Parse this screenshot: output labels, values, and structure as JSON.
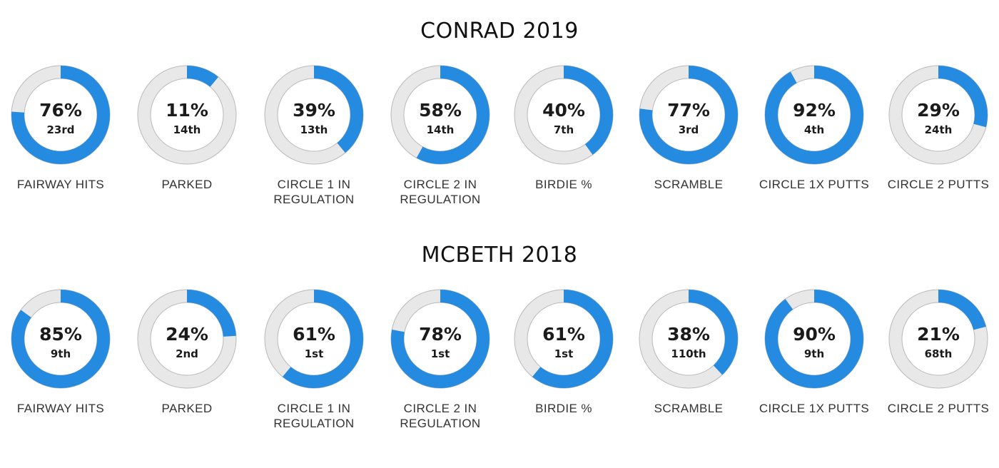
{
  "colors": {
    "filled": "#258be0",
    "track": "#e8e8e8",
    "outline": "#b9b9b9"
  },
  "chart_data": [
    {
      "type": "donut",
      "title": "CONRAD 2019",
      "items": [
        {
          "label": "FAIRWAY HITS",
          "value": 76,
          "pct_text": "76%",
          "rank": "23rd"
        },
        {
          "label": "PARKED",
          "value": 11,
          "pct_text": "11%",
          "rank": "14th"
        },
        {
          "label": "CIRCLE 1 IN REGULATION",
          "value": 39,
          "pct_text": "39%",
          "rank": "13th"
        },
        {
          "label": "CIRCLE 2 IN REGULATION",
          "value": 58,
          "pct_text": "58%",
          "rank": "14th"
        },
        {
          "label": "BIRDIE %",
          "value": 40,
          "pct_text": "40%",
          "rank": "7th"
        },
        {
          "label": "SCRAMBLE",
          "value": 77,
          "pct_text": "77%",
          "rank": "3rd"
        },
        {
          "label": "CIRCLE 1X PUTTS",
          "value": 92,
          "pct_text": "92%",
          "rank": "4th"
        },
        {
          "label": "CIRCLE 2 PUTTS",
          "value": 29,
          "pct_text": "29%",
          "rank": "24th"
        }
      ]
    },
    {
      "type": "donut",
      "title": "MCBETH 2018",
      "items": [
        {
          "label": "FAIRWAY HITS",
          "value": 85,
          "pct_text": "85%",
          "rank": "9th"
        },
        {
          "label": "PARKED",
          "value": 24,
          "pct_text": "24%",
          "rank": "2nd"
        },
        {
          "label": "CIRCLE 1 IN REGULATION",
          "value": 61,
          "pct_text": "61%",
          "rank": "1st"
        },
        {
          "label": "CIRCLE 2 IN REGULATION",
          "value": 78,
          "pct_text": "78%",
          "rank": "1st"
        },
        {
          "label": "BIRDIE %",
          "value": 61,
          "pct_text": "61%",
          "rank": "1st"
        },
        {
          "label": "SCRAMBLE",
          "value": 38,
          "pct_text": "38%",
          "rank": "110th"
        },
        {
          "label": "CIRCLE 1X PUTTS",
          "value": 90,
          "pct_text": "90%",
          "rank": "9th"
        },
        {
          "label": "CIRCLE 2 PUTTS",
          "value": 21,
          "pct_text": "21%",
          "rank": "68th"
        }
      ]
    }
  ]
}
